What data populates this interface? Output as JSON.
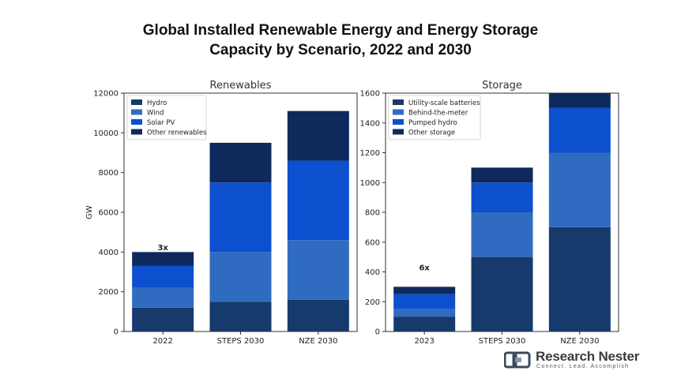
{
  "title_line1": "Global Installed Renewable Energy and Energy Storage",
  "title_line2": "Capacity by Scenario, 2022 and 2030",
  "logo": {
    "name": "Research Nester",
    "tagline": "Connect. Lead. Accomplish"
  },
  "chart_data": [
    {
      "type": "bar",
      "stacked": true,
      "title": "Renewables",
      "ylabel": "GW",
      "xlabel": "",
      "ylim": [
        0,
        12000
      ],
      "yticks": [
        0,
        2000,
        4000,
        6000,
        8000,
        10000,
        12000
      ],
      "categories": [
        "2022",
        "STEPS 2030",
        "NZE 2030"
      ],
      "legend_position": "top-left",
      "series": [
        {
          "name": "Hydro",
          "color": "#153a6b",
          "values": [
            1200,
            1500,
            1600
          ]
        },
        {
          "name": "Wind",
          "color": "#2f6cc1",
          "values": [
            1000,
            2500,
            3000
          ]
        },
        {
          "name": "Solar PV",
          "color": "#0c4fcf",
          "values": [
            1100,
            3500,
            4000
          ]
        },
        {
          "name": "Other renewables",
          "color": "#0e2a5c",
          "values": [
            700,
            2000,
            2500
          ]
        }
      ],
      "annotations": [
        {
          "text": "3x",
          "category": "2022",
          "y": 4100
        }
      ]
    },
    {
      "type": "bar",
      "stacked": true,
      "title": "Storage",
      "ylabel": "",
      "xlabel": "",
      "ylim": [
        0,
        1600
      ],
      "yticks": [
        0,
        200,
        400,
        600,
        800,
        1000,
        1200,
        1400,
        1600
      ],
      "categories": [
        "2023",
        "STEPS 2030",
        "NZE 2030"
      ],
      "legend_position": "top-left",
      "series": [
        {
          "name": "Utility-scale batteries",
          "color": "#153a6b",
          "values": [
            100,
            500,
            700
          ]
        },
        {
          "name": "Behind-the-meter",
          "color": "#2f6cc1",
          "values": [
            50,
            300,
            500
          ]
        },
        {
          "name": "Pumped hydro",
          "color": "#0c4fcf",
          "values": [
            100,
            200,
            300
          ]
        },
        {
          "name": "Other storage",
          "color": "#0e2a5c",
          "values": [
            50,
            100,
            100
          ]
        }
      ],
      "annotations": [
        {
          "text": "6x",
          "category": "2023",
          "y": 410
        }
      ]
    }
  ]
}
